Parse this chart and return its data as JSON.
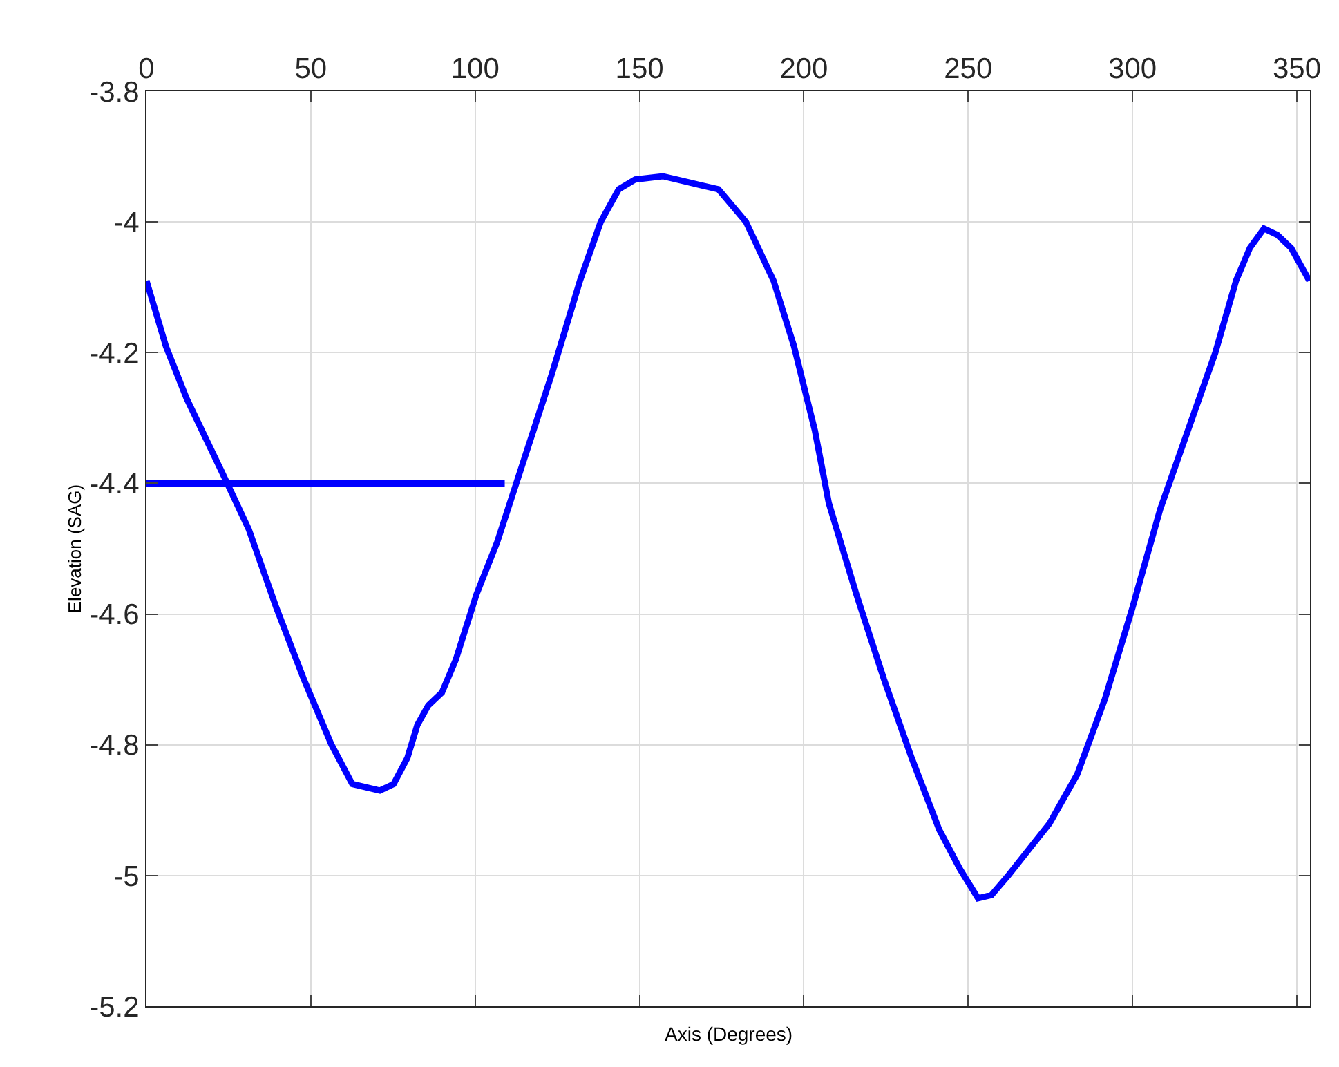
{
  "chart_data": {
    "type": "line",
    "xlabel": "Axis (Degrees)",
    "ylabel": "Elevation (SAG)",
    "xlim": [
      0,
      354
    ],
    "xticks": [
      0,
      50,
      100,
      150,
      200,
      250,
      300,
      350
    ],
    "ylim": [
      -5.2,
      -3.8
    ],
    "yticks": [
      -5.2,
      -5,
      -4.8,
      -4.6,
      -4.4,
      -4.2,
      -4,
      -3.8
    ],
    "grid": true,
    "marker": "none",
    "line_style": "solid",
    "series": [
      {
        "color": "#0000ff",
        "x": [
          0,
          5.9,
          12.2,
          22.7,
          31.1,
          39.5,
          47.9,
          56.3,
          62.6,
          71,
          75.2,
          79.4,
          82.4,
          85.7,
          89.9,
          94.1,
          100.4,
          106.7,
          115.1,
          123.5,
          131.9,
          138.2,
          143.7,
          148.7,
          157.1,
          165.5,
          174,
          182.4,
          190.8,
          197,
          203.4,
          207.6,
          216,
          224.4,
          232.8,
          241.2,
          247.5,
          253,
          257.1,
          262.2,
          268.5,
          274.8,
          283.2,
          291.6,
          300,
          308.4,
          316.8,
          325.2,
          331.5,
          335.7,
          340,
          344.1,
          348.3,
          353.8
        ],
        "values": [
          -4.09,
          -4.19,
          -4.27,
          -4.38,
          -4.47,
          -4.59,
          -4.7,
          -4.8,
          -4.86,
          -4.87,
          -4.86,
          -4.82,
          -4.77,
          -4.74,
          -4.72,
          -4.67,
          -4.57,
          -4.49,
          -4.36,
          -4.23,
          -4.09,
          -4.0,
          -3.95,
          -3.935,
          -3.93,
          -3.94,
          -3.95,
          -4.0,
          -4.09,
          -4.19,
          -4.32,
          -4.43,
          -4.57,
          -4.7,
          -4.82,
          -4.93,
          -4.99,
          -5.035,
          -5.03,
          -5.0,
          -4.96,
          -4.92,
          -4.845,
          -4.73,
          -4.59,
          -4.44,
          -4.32,
          -4.2,
          -4.09,
          -4.04,
          -4.01,
          -4.02,
          -4.04,
          -4.09
        ]
      },
      {
        "color": "#0000ff",
        "x": [
          0,
          109
        ],
        "values": [
          -4.4,
          -4.4
        ]
      }
    ]
  }
}
